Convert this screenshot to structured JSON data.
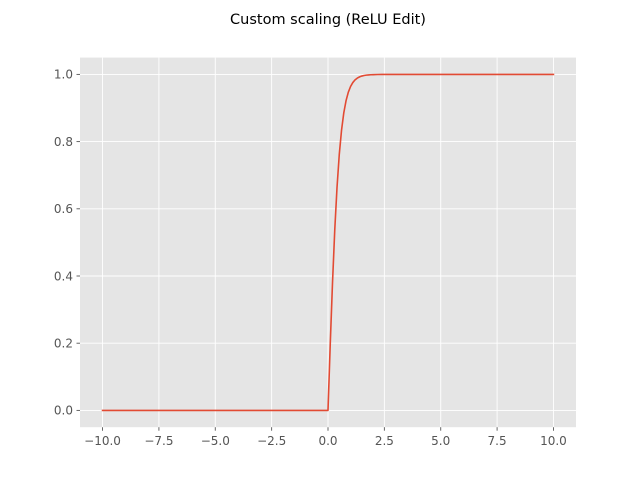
{
  "chart_data": {
    "type": "line",
    "title": "Custom scaling (ReLU Edit)",
    "xlabel": "",
    "ylabel": "",
    "xlim": [
      -11.0,
      11.0
    ],
    "ylim": [
      -0.05,
      1.05
    ],
    "x_ticks": [
      -10.0,
      -7.5,
      -5.0,
      -2.5,
      0.0,
      2.5,
      5.0,
      7.5,
      10.0
    ],
    "x_tick_labels": [
      "−10.0",
      "−7.5",
      "−5.0",
      "−2.5",
      "0.0",
      "2.5",
      "5.0",
      "7.5",
      "10.0"
    ],
    "y_ticks": [
      0.0,
      0.2,
      0.4,
      0.6,
      0.8,
      1.0
    ],
    "y_tick_labels": [
      "0.0",
      "0.2",
      "0.4",
      "0.6",
      "0.8",
      "1.0"
    ],
    "grid": true,
    "background_color": "#e5e5e5",
    "grid_color": "#ffffff",
    "series": [
      {
        "color": "#e24a33",
        "x": [
          -10.0,
          -9.0,
          -8.0,
          -7.0,
          -6.0,
          -5.0,
          -4.0,
          -3.0,
          -2.0,
          -1.0,
          -0.5,
          -0.1,
          0.0,
          0.1,
          0.2,
          0.3,
          0.4,
          0.5,
          0.6,
          0.7,
          0.8,
          0.9,
          1.0,
          1.1,
          1.2,
          1.3,
          1.4,
          1.5,
          1.6,
          1.7,
          1.8,
          1.9,
          2.0,
          2.2,
          2.4,
          2.6,
          2.8,
          3.0,
          3.5,
          4.0,
          5.0,
          6.0,
          7.0,
          8.0,
          9.0,
          10.0
        ],
        "y": [
          0.0,
          0.0,
          0.0,
          0.0,
          0.0,
          0.0,
          0.0,
          0.0,
          0.0,
          0.0,
          0.0,
          0.0,
          0.0,
          0.1974,
          0.3799,
          0.537,
          0.664,
          0.7616,
          0.8337,
          0.8854,
          0.9217,
          0.9468,
          0.964,
          0.9757,
          0.9837,
          0.989,
          0.9926,
          0.9951,
          0.9967,
          0.9978,
          0.9985,
          0.999,
          0.9993,
          0.9997,
          0.9998,
          0.9999,
          1.0,
          1.0,
          1.0,
          1.0,
          1.0,
          1.0,
          1.0,
          1.0,
          1.0,
          1.0
        ]
      }
    ]
  }
}
